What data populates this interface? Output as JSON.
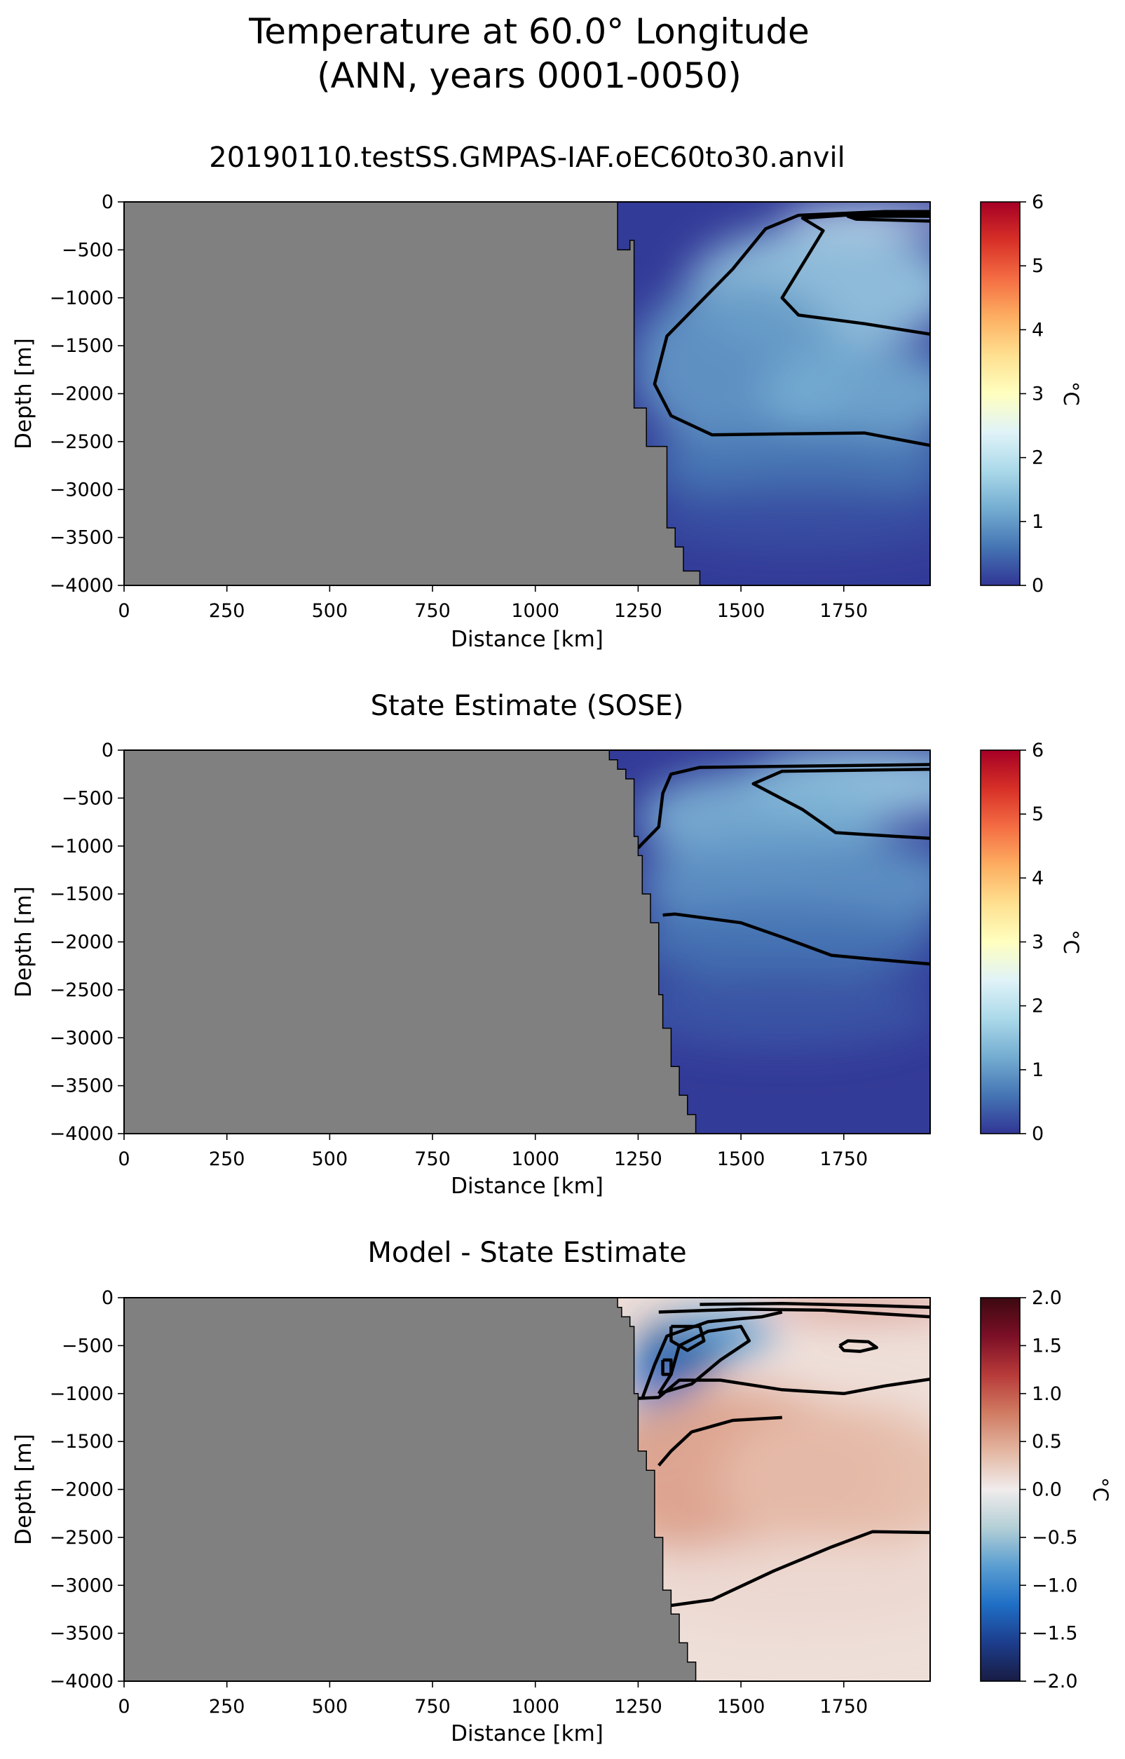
{
  "figure": {
    "title_line1": "Temperature at 60.0° Longitude",
    "title_line2": "(ANN, years 0001-0050)"
  },
  "colors": {
    "land": "#808080",
    "contour": "#000000",
    "rdylbu_r": [
      "#313695",
      "#4575b4",
      "#74add1",
      "#abd9e9",
      "#e0f3f8",
      "#ffffbf",
      "#fee090",
      "#fdae61",
      "#f46d43",
      "#d73027",
      "#a50026"
    ],
    "balance_diverging": [
      "#181c43",
      "#1d3d8c",
      "#1f6fc6",
      "#5a9ed1",
      "#b3cfd6",
      "#f1ecec",
      "#e3b6a1",
      "#d07b62",
      "#b73a39",
      "#7b0f26",
      "#3c0911"
    ]
  },
  "chart_data": [
    {
      "type": "heatmap",
      "title": "20190110.testSS.GMPAS-IAF.oEC60to30.anvil",
      "xlabel": "Distance [km]",
      "ylabel": "Depth [m]",
      "xlim": [
        0,
        1960
      ],
      "ylim": [
        -4000,
        0
      ],
      "xticks": [
        "0",
        "250",
        "500",
        "750",
        "1000",
        "1250",
        "1500",
        "1750"
      ],
      "yticks": [
        "0",
        "−500",
        "−1000",
        "−1500",
        "−2000",
        "−2500",
        "−3000",
        "−3500",
        "−4000"
      ],
      "colorbar": {
        "label": "°C",
        "range": [
          0,
          6
        ],
        "ticks": [
          "0",
          "1",
          "2",
          "3",
          "4",
          "5",
          "6"
        ],
        "colormap": "RdYlBu_r"
      },
      "topography": [
        [
          1200,
          0
        ],
        [
          1200,
          -500
        ],
        [
          1230,
          -500
        ],
        [
          1230,
          -400
        ],
        [
          1240,
          -400
        ],
        [
          1240,
          -2150
        ],
        [
          1270,
          -2150
        ],
        [
          1270,
          -2550
        ],
        [
          1320,
          -2550
        ],
        [
          1320,
          -3400
        ],
        [
          1340,
          -3400
        ],
        [
          1340,
          -3600
        ],
        [
          1360,
          -3600
        ],
        [
          1360,
          -3850
        ],
        [
          1400,
          -3850
        ],
        [
          1400,
          -4000
        ]
      ],
      "field": [
        {
          "x": 1830,
          "y": -170,
          "value": 2.3,
          "rx": 230,
          "ry": 130
        },
        {
          "x": 1700,
          "y": -900,
          "value": 1.6,
          "rx": 330,
          "ry": 650
        },
        {
          "x": 1500,
          "y": -1700,
          "value": 1.0,
          "rx": 260,
          "ry": 900
        },
        {
          "x": 1800,
          "y": -2000,
          "value": 1.2,
          "rx": 250,
          "ry": 500
        },
        {
          "x": 1650,
          "y": -2750,
          "value": 0.65,
          "rx": 380,
          "ry": 400
        },
        {
          "x": 1650,
          "y": -3300,
          "value": 0.25,
          "rx": 380,
          "ry": 350
        }
      ],
      "contours": [
        {
          "level": 0.5,
          "points": [
            [
              1960,
              -2540
            ],
            [
              1800,
              -2410
            ],
            [
              1600,
              -2420
            ],
            [
              1430,
              -2430
            ],
            [
              1330,
              -2230
            ],
            [
              1290,
              -1900
            ],
            [
              1320,
              -1400
            ],
            [
              1400,
              -1050
            ],
            [
              1480,
              -700
            ],
            [
              1560,
              -280
            ],
            [
              1640,
              -140
            ],
            [
              1850,
              -100
            ],
            [
              1960,
              -100
            ]
          ]
        },
        {
          "level": 1.5,
          "points": [
            [
              1960,
              -1380
            ],
            [
              1800,
              -1270
            ],
            [
              1640,
              -1180
            ],
            [
              1600,
              -1000
            ],
            [
              1650,
              -650
            ],
            [
              1700,
              -300
            ],
            [
              1650,
              -170
            ],
            [
              1780,
              -130
            ],
            [
              1960,
              -130
            ]
          ]
        },
        {
          "level": 2.0,
          "points": [
            [
              1960,
              -150
            ],
            [
              1760,
              -150
            ],
            [
              1780,
              -180
            ],
            [
              1960,
              -200
            ]
          ]
        }
      ]
    },
    {
      "type": "heatmap",
      "title": "State Estimate (SOSE)",
      "xlabel": "Distance [km]",
      "ylabel": "Depth [m]",
      "xlim": [
        0,
        1960
      ],
      "ylim": [
        -4000,
        0
      ],
      "xticks": [
        "0",
        "250",
        "500",
        "750",
        "1000",
        "1250",
        "1500",
        "1750"
      ],
      "yticks": [
        "0",
        "−500",
        "−1000",
        "−1500",
        "−2000",
        "−2500",
        "−3000",
        "−3500",
        "−4000"
      ],
      "colorbar": {
        "label": "°C",
        "range": [
          0,
          6
        ],
        "ticks": [
          "0",
          "1",
          "2",
          "3",
          "4",
          "5",
          "6"
        ],
        "colormap": "RdYlBu_r"
      },
      "topography": [
        [
          1180,
          0
        ],
        [
          1180,
          -100
        ],
        [
          1200,
          -100
        ],
        [
          1200,
          -200
        ],
        [
          1220,
          -200
        ],
        [
          1220,
          -300
        ],
        [
          1240,
          -300
        ],
        [
          1240,
          -900
        ],
        [
          1250,
          -900
        ],
        [
          1250,
          -1100
        ],
        [
          1260,
          -1100
        ],
        [
          1260,
          -1500
        ],
        [
          1280,
          -1500
        ],
        [
          1280,
          -1800
        ],
        [
          1300,
          -1800
        ],
        [
          1300,
          -2550
        ],
        [
          1310,
          -2550
        ],
        [
          1310,
          -2900
        ],
        [
          1330,
          -2900
        ],
        [
          1330,
          -3300
        ],
        [
          1350,
          -3300
        ],
        [
          1350,
          -3600
        ],
        [
          1370,
          -3600
        ],
        [
          1370,
          -3800
        ],
        [
          1390,
          -3800
        ],
        [
          1390,
          -4000
        ]
      ],
      "field": [
        {
          "x": 1800,
          "y": -350,
          "value": 1.6,
          "rx": 300,
          "ry": 400
        },
        {
          "x": 1550,
          "y": -700,
          "value": 1.3,
          "rx": 300,
          "ry": 500
        },
        {
          "x": 1650,
          "y": -1400,
          "value": 0.95,
          "rx": 400,
          "ry": 550
        },
        {
          "x": 1600,
          "y": -2000,
          "value": 0.6,
          "rx": 380,
          "ry": 400
        },
        {
          "x": 1600,
          "y": -2700,
          "value": 0.3,
          "rx": 380,
          "ry": 400
        }
      ],
      "contours": [
        {
          "level": 0.5,
          "points": [
            [
              1960,
              -2230
            ],
            [
              1820,
              -2180
            ],
            [
              1720,
              -2140
            ],
            [
              1600,
              -1950
            ],
            [
              1500,
              -1800
            ],
            [
              1340,
              -1710
            ],
            [
              1310,
              -1720
            ]
          ]
        },
        {
          "level": 1.0,
          "points": [
            [
              1250,
              -1020
            ],
            [
              1300,
              -800
            ],
            [
              1310,
              -450
            ],
            [
              1330,
              -250
            ],
            [
              1400,
              -180
            ],
            [
              1960,
              -150
            ]
          ]
        },
        {
          "level": 1.5,
          "points": [
            [
              1960,
              -920
            ],
            [
              1800,
              -880
            ],
            [
              1730,
              -860
            ],
            [
              1650,
              -620
            ],
            [
              1530,
              -350
            ],
            [
              1600,
              -220
            ],
            [
              1960,
              -200
            ]
          ]
        }
      ]
    },
    {
      "type": "heatmap",
      "title": "Model - State Estimate",
      "xlabel": "Distance [km]",
      "ylabel": "Depth [m]",
      "xlim": [
        0,
        1960
      ],
      "ylim": [
        -4000,
        0
      ],
      "xticks": [
        "0",
        "250",
        "500",
        "750",
        "1000",
        "1250",
        "1500",
        "1750"
      ],
      "yticks": [
        "0",
        "−500",
        "−1000",
        "−1500",
        "−2000",
        "−2500",
        "−3000",
        "−3500",
        "−4000"
      ],
      "colorbar": {
        "label": "°C",
        "range": [
          -2,
          2
        ],
        "ticks": [
          "−2.0",
          "−1.5",
          "−1.0",
          "−0.5",
          "0.0",
          "0.5",
          "1.0",
          "1.5",
          "2.0"
        ],
        "colormap": "balance"
      },
      "topography": [
        [
          1200,
          0
        ],
        [
          1200,
          -100
        ],
        [
          1210,
          -100
        ],
        [
          1210,
          -200
        ],
        [
          1230,
          -200
        ],
        [
          1230,
          -300
        ],
        [
          1240,
          -300
        ],
        [
          1240,
          -1000
        ],
        [
          1250,
          -1000
        ],
        [
          1250,
          -1600
        ],
        [
          1270,
          -1600
        ],
        [
          1270,
          -1800
        ],
        [
          1290,
          -1800
        ],
        [
          1290,
          -2500
        ],
        [
          1310,
          -2500
        ],
        [
          1310,
          -3050
        ],
        [
          1330,
          -3050
        ],
        [
          1330,
          -3300
        ],
        [
          1350,
          -3300
        ],
        [
          1350,
          -3600
        ],
        [
          1370,
          -3600
        ],
        [
          1370,
          -3800
        ],
        [
          1390,
          -3800
        ],
        [
          1390,
          -4000
        ]
      ],
      "field": [
        {
          "x": 1360,
          "y": -550,
          "value": -1.7,
          "rx": 110,
          "ry": 330
        },
        {
          "x": 1300,
          "y": -900,
          "value": -1.2,
          "rx": 80,
          "ry": 350
        },
        {
          "x": 1450,
          "y": -380,
          "value": -0.9,
          "rx": 130,
          "ry": 220
        },
        {
          "x": 1290,
          "y": -1350,
          "value": -0.4,
          "rx": 60,
          "ry": 300
        },
        {
          "x": 1800,
          "y": -90,
          "value": 1.0,
          "rx": 250,
          "ry": 70
        },
        {
          "x": 1500,
          "y": -1850,
          "value": 0.55,
          "rx": 380,
          "ry": 900
        },
        {
          "x": 1750,
          "y": -1900,
          "value": 0.35,
          "rx": 300,
          "ry": 800
        },
        {
          "x": 1650,
          "y": -3000,
          "value": 0.15,
          "rx": 400,
          "ry": 500
        }
      ],
      "contours": [
        {
          "level": 0.0,
          "points": [
            [
              1960,
              -850
            ],
            [
              1850,
              -920
            ],
            [
              1750,
              -1000
            ],
            [
              1600,
              -960
            ],
            [
              1450,
              -860
            ],
            [
              1350,
              -860
            ],
            [
              1300,
              -1040
            ],
            [
              1250,
              -1050
            ]
          ]
        },
        {
          "level": 0.0,
          "points": [
            [
              1300,
              -1750
            ],
            [
              1330,
              -1600
            ],
            [
              1380,
              -1400
            ],
            [
              1480,
              -1280
            ],
            [
              1600,
              -1250
            ]
          ]
        },
        {
          "level": 0.25,
          "points": [
            [
              1960,
              -2450
            ],
            [
              1820,
              -2440
            ],
            [
              1720,
              -2600
            ],
            [
              1580,
              -2850
            ],
            [
              1430,
              -3150
            ],
            [
              1330,
              -3210
            ]
          ]
        },
        {
          "level": -0.5,
          "points": [
            [
              1260,
              -1050
            ],
            [
              1290,
              -700
            ],
            [
              1320,
              -400
            ],
            [
              1420,
              -250
            ],
            [
              1550,
              -200
            ],
            [
              1600,
              -150
            ]
          ]
        },
        {
          "level": -1.0,
          "points": [
            [
              1300,
              -1000
            ],
            [
              1330,
              -800
            ],
            [
              1350,
              -500
            ],
            [
              1420,
              -350
            ],
            [
              1500,
              -300
            ],
            [
              1520,
              -450
            ],
            [
              1450,
              -650
            ],
            [
              1380,
              -900
            ],
            [
              1300,
              -1000
            ]
          ]
        },
        {
          "level": -1.5,
          "points": [
            [
              1330,
              -300
            ],
            [
              1400,
              -300
            ],
            [
              1410,
              -450
            ],
            [
              1370,
              -550
            ],
            [
              1330,
              -450
            ],
            [
              1330,
              -300
            ]
          ]
        },
        {
          "level": -1.5,
          "points": [
            [
              1310,
              -650
            ],
            [
              1330,
              -650
            ],
            [
              1330,
              -800
            ],
            [
              1310,
              -800
            ],
            [
              1310,
              -650
            ]
          ]
        },
        {
          "level": 0.5,
          "points": [
            [
              1740,
              -500
            ],
            [
              1760,
              -450
            ],
            [
              1810,
              -460
            ],
            [
              1830,
              -520
            ],
            [
              1790,
              -560
            ],
            [
              1750,
              -550
            ],
            [
              1740,
              -500
            ]
          ]
        },
        {
          "level": 0.75,
          "points": [
            [
              1300,
              -150
            ],
            [
              1500,
              -120
            ],
            [
              1700,
              -130
            ],
            [
              1960,
              -200
            ]
          ]
        },
        {
          "level": 1.0,
          "points": [
            [
              1400,
              -70
            ],
            [
              1600,
              -60
            ],
            [
              1800,
              -80
            ],
            [
              1960,
              -100
            ]
          ]
        }
      ]
    }
  ]
}
